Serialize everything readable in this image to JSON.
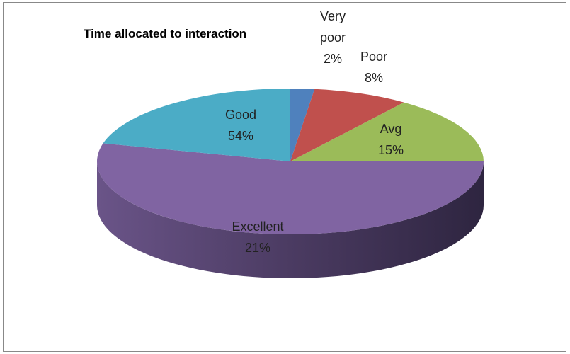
{
  "chart_data": {
    "type": "pie",
    "title": "Time allocated to interaction",
    "categories": [
      "Very poor",
      "Poor",
      "Avg",
      "Good",
      "Excellent"
    ],
    "values": [
      2,
      8,
      15,
      54,
      21
    ],
    "value_labels": [
      "2%",
      "8%",
      "15%",
      "54%",
      "21%"
    ],
    "colors": [
      "#4f81bd",
      "#c0504d",
      "#9bbb59",
      "#8064a2",
      "#4bacc6"
    ],
    "three_d": true
  }
}
